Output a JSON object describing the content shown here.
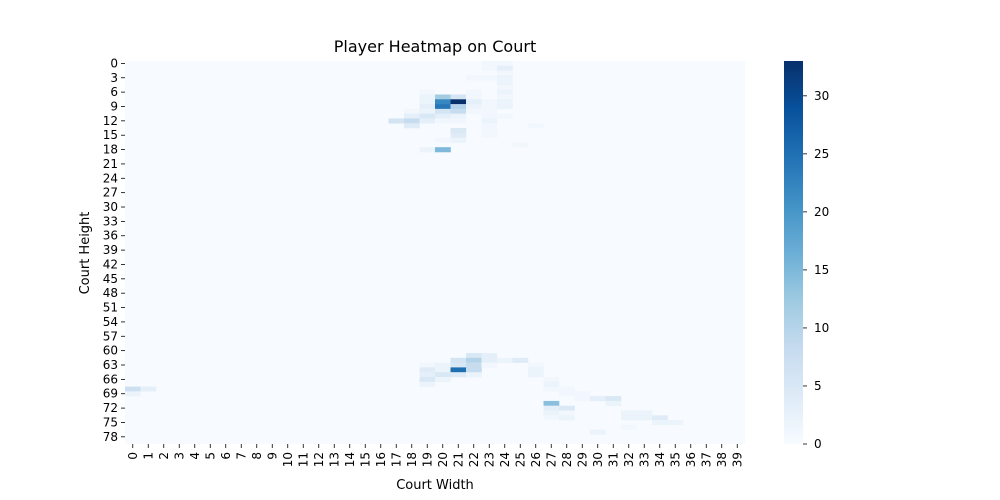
{
  "chart_data": {
    "type": "heatmap",
    "title": "Player Heatmap on Court",
    "xlabel": "Court Width",
    "ylabel": "Court Height",
    "cols": 40,
    "rows": 80,
    "x_tick_labels": [
      "0",
      "1",
      "2",
      "3",
      "4",
      "5",
      "6",
      "7",
      "8",
      "9",
      "10",
      "11",
      "12",
      "13",
      "14",
      "15",
      "16",
      "17",
      "18",
      "19",
      "20",
      "21",
      "22",
      "23",
      "24",
      "25",
      "26",
      "27",
      "28",
      "29",
      "30",
      "31",
      "32",
      "33",
      "34",
      "35",
      "36",
      "37",
      "38",
      "39"
    ],
    "y_tick_labels": [
      "0",
      "3",
      "6",
      "9",
      "12",
      "15",
      "18",
      "21",
      "24",
      "27",
      "30",
      "33",
      "36",
      "39",
      "42",
      "45",
      "48",
      "51",
      "54",
      "57",
      "60",
      "63",
      "66",
      "69",
      "72",
      "75",
      "78"
    ],
    "y_tick_rows": [
      0,
      3,
      6,
      9,
      12,
      15,
      18,
      21,
      24,
      27,
      30,
      33,
      36,
      39,
      42,
      45,
      48,
      51,
      54,
      57,
      60,
      63,
      66,
      69,
      72,
      75,
      78
    ],
    "colorbar": {
      "min": 0,
      "max": 33,
      "ticks": [
        0,
        5,
        10,
        15,
        20,
        25,
        30
      ]
    },
    "colormap": [
      "#f7fbff",
      "#deebf7",
      "#c6dbef",
      "#9ecae1",
      "#6baed6",
      "#4292c6",
      "#2171b5",
      "#08519c",
      "#08306b"
    ],
    "cells": [
      [
        0,
        23,
        1
      ],
      [
        0,
        24,
        1
      ],
      [
        1,
        23,
        1
      ],
      [
        1,
        24,
        3
      ],
      [
        2,
        24,
        1
      ],
      [
        3,
        22,
        1
      ],
      [
        3,
        23,
        1
      ],
      [
        3,
        24,
        2
      ],
      [
        4,
        24,
        2
      ],
      [
        5,
        24,
        1
      ],
      [
        6,
        19,
        1
      ],
      [
        6,
        22,
        1
      ],
      [
        6,
        24,
        2
      ],
      [
        7,
        19,
        2
      ],
      [
        7,
        20,
        12
      ],
      [
        7,
        21,
        6
      ],
      [
        7,
        22,
        1
      ],
      [
        7,
        24,
        1
      ],
      [
        8,
        19,
        2
      ],
      [
        8,
        20,
        22
      ],
      [
        8,
        21,
        33
      ],
      [
        8,
        22,
        3
      ],
      [
        8,
        23,
        1
      ],
      [
        8,
        24,
        2
      ],
      [
        9,
        19,
        3
      ],
      [
        9,
        20,
        24
      ],
      [
        9,
        21,
        10
      ],
      [
        9,
        22,
        2
      ],
      [
        9,
        23,
        1
      ],
      [
        9,
        24,
        2
      ],
      [
        10,
        18,
        1
      ],
      [
        10,
        19,
        2
      ],
      [
        10,
        20,
        6
      ],
      [
        10,
        21,
        8
      ],
      [
        10,
        22,
        1
      ],
      [
        10,
        23,
        1
      ],
      [
        11,
        18,
        3
      ],
      [
        11,
        19,
        5
      ],
      [
        11,
        20,
        3
      ],
      [
        11,
        21,
        2
      ],
      [
        11,
        23,
        1
      ],
      [
        11,
        24,
        1
      ],
      [
        12,
        17,
        6
      ],
      [
        12,
        18,
        8
      ],
      [
        12,
        19,
        3
      ],
      [
        12,
        20,
        1
      ],
      [
        12,
        21,
        1
      ],
      [
        12,
        23,
        2
      ],
      [
        13,
        18,
        4
      ],
      [
        13,
        23,
        1
      ],
      [
        13,
        26,
        1
      ],
      [
        14,
        21,
        5
      ],
      [
        14,
        23,
        1
      ],
      [
        15,
        21,
        4
      ],
      [
        15,
        23,
        1
      ],
      [
        16,
        20,
        1
      ],
      [
        16,
        21,
        2
      ],
      [
        17,
        25,
        1
      ],
      [
        18,
        19,
        2
      ],
      [
        18,
        20,
        15
      ],
      [
        61,
        22,
        5
      ],
      [
        61,
        23,
        3
      ],
      [
        62,
        21,
        6
      ],
      [
        62,
        22,
        10
      ],
      [
        62,
        23,
        3
      ],
      [
        62,
        24,
        2
      ],
      [
        62,
        25,
        4
      ],
      [
        63,
        19,
        1
      ],
      [
        63,
        20,
        2
      ],
      [
        63,
        21,
        5
      ],
      [
        63,
        22,
        8
      ],
      [
        63,
        23,
        1
      ],
      [
        63,
        26,
        1
      ],
      [
        64,
        19,
        4
      ],
      [
        64,
        20,
        2
      ],
      [
        64,
        21,
        25
      ],
      [
        64,
        22,
        8
      ],
      [
        64,
        26,
        2
      ],
      [
        65,
        19,
        3
      ],
      [
        65,
        20,
        5
      ],
      [
        65,
        21,
        4
      ],
      [
        65,
        22,
        2
      ],
      [
        65,
        26,
        2
      ],
      [
        66,
        19,
        5
      ],
      [
        66,
        20,
        2
      ],
      [
        66,
        27,
        1
      ],
      [
        67,
        19,
        2
      ],
      [
        67,
        27,
        2
      ],
      [
        68,
        0,
        7
      ],
      [
        68,
        1,
        3
      ],
      [
        68,
        27,
        1
      ],
      [
        68,
        28,
        1
      ],
      [
        69,
        0,
        2
      ],
      [
        69,
        28,
        1
      ],
      [
        69,
        29,
        1
      ],
      [
        70,
        29,
        1
      ],
      [
        70,
        30,
        3
      ],
      [
        70,
        31,
        5
      ],
      [
        71,
        27,
        14
      ],
      [
        71,
        31,
        2
      ],
      [
        72,
        27,
        3
      ],
      [
        72,
        28,
        5
      ],
      [
        73,
        27,
        2
      ],
      [
        73,
        28,
        1
      ],
      [
        73,
        32,
        2
      ],
      [
        73,
        33,
        2
      ],
      [
        74,
        27,
        1
      ],
      [
        74,
        28,
        2
      ],
      [
        74,
        32,
        2
      ],
      [
        74,
        33,
        2
      ],
      [
        74,
        34,
        4
      ],
      [
        75,
        34,
        2
      ],
      [
        75,
        35,
        2
      ],
      [
        76,
        32,
        1
      ],
      [
        77,
        30,
        2
      ]
    ]
  }
}
